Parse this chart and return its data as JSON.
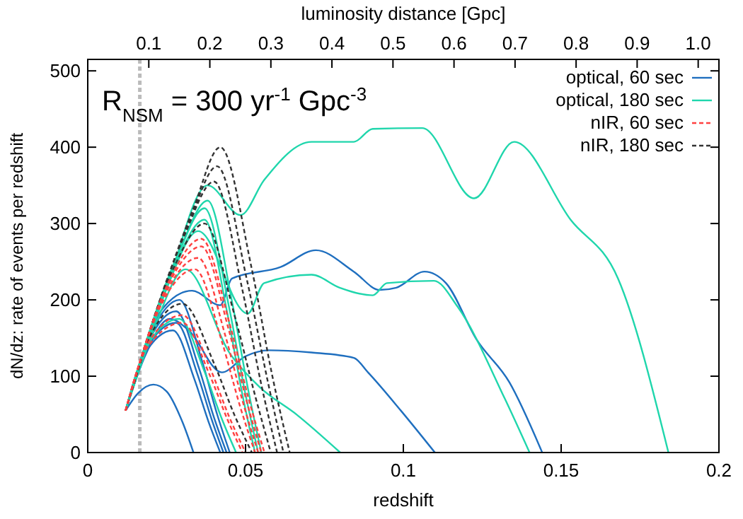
{
  "chart_data": {
    "type": "line",
    "xlabel": "redshift",
    "ylabel": "dN/dz: rate of events per redshift",
    "x2label": "luminosity distance [Gpc]",
    "xlim": [
      0,
      0.2
    ],
    "xticks": [
      0,
      0.05,
      0.1,
      0.15,
      0.2
    ],
    "ylim": [
      0,
      515
    ],
    "yticks": [
      0,
      100,
      200,
      300,
      400,
      500
    ],
    "x2lim": [
      0,
      1.034
    ],
    "x2ticks": [
      0.1,
      0.2,
      0.3,
      0.4,
      0.5,
      0.6,
      0.7,
      0.8,
      0.9,
      {
        "value": 1,
        "label": "1.0"
      }
    ],
    "annotations": [
      "R$_{NSM}$ = 300 yr$^{-1}$ Gpc$^{-3}$"
    ],
    "ref_lines": [
      {
        "axis": "x",
        "value": 0.0165,
        "color": "#bbbbbb",
        "line_style": "dashed"
      }
    ],
    "legend": "top right",
    "grid": false,
    "series": [
      {
        "name": "optical, 60 sec",
        "color": "#1f6fbf",
        "x": [
          0.012,
          0.024,
          0.033,
          0.042,
          0.0457,
          0.0611,
          0.0723,
          0.0843,
          0.0925,
          0.0978,
          0.1067,
          0.1135,
          0.1232,
          0.1336,
          0.144
        ],
        "values": [
          55,
          190,
          212,
          193,
          228,
          243,
          265,
          237,
          213,
          216,
          237,
          222,
          148,
          92,
          0
        ]
      },
      {
        "color": "#1f6fbf",
        "x": [
          0.012,
          0.018,
          0.026,
          0.032,
          0.0425,
          0.0499,
          0.0574,
          0.0709,
          0.0843,
          0.0888,
          0.0992,
          0.11
        ],
        "values": [
          55,
          125,
          175,
          160,
          105,
          126,
          134,
          131,
          124,
          105,
          55,
          0
        ]
      },
      {
        "color": "#1f6fbf",
        "x": [
          0.012,
          0.016,
          0.0208,
          0.025,
          0.03,
          0.0335
        ],
        "values": [
          55,
          78,
          89,
          80,
          40,
          0
        ]
      },
      {
        "color": "#1f6fbf",
        "x": [
          0.012,
          0.0205,
          0.029,
          0.0362,
          0.041,
          0.045
        ],
        "values": [
          55,
          160,
          200,
          120,
          50,
          0
        ]
      },
      {
        "color": "#1f6fbf",
        "x": [
          0.012,
          0.0196,
          0.028,
          0.0352,
          0.04,
          0.044
        ],
        "values": [
          55,
          148,
          185,
          111,
          46,
          0
        ]
      },
      {
        "color": "#1f6fbf",
        "x": [
          0.012,
          0.0186,
          0.028,
          0.0348,
          0.0393,
          0.043
        ],
        "values": [
          55,
          136,
          170,
          102,
          43,
          0
        ]
      },
      {
        "color": "#1f6fbf",
        "x": [
          0.012,
          0.0179,
          0.027,
          0.0338,
          0.0383,
          0.042
        ],
        "values": [
          55,
          128,
          160,
          96,
          40,
          0
        ]
      },
      {
        "name": "optical, 180 sec",
        "color": "#1fd6ac",
        "x": [
          0.012,
          0.025,
          0.038,
          0.0484,
          0.0559,
          0.0709,
          0.0843,
          0.0903,
          0.106,
          0.1224,
          0.1351,
          0.153,
          0.168,
          0.184
        ],
        "values": [
          55,
          215,
          350,
          311,
          357,
          407,
          407,
          424,
          425,
          333,
          407,
          305,
          228,
          0
        ]
      },
      {
        "color": "#1fd6ac",
        "x": [
          0.012,
          0.025,
          0.035,
          0.0507,
          0.0559,
          0.0709,
          0.0798,
          0.0903,
          0.0948,
          0.1097,
          0.1172,
          0.1321,
          0.14
        ],
        "values": [
          55,
          215,
          290,
          182,
          222,
          233,
          216,
          206,
          222,
          225,
          191,
          71,
          0
        ]
      },
      {
        "color": "#1fd6ac",
        "x": [
          0.012,
          0.02,
          0.031,
          0.045,
          0.0544,
          0.0664,
          0.08
        ],
        "values": [
          55,
          150,
          240,
          130,
          86,
          49,
          0
        ]
      },
      {
        "color": "#1fd6ac",
        "x": [
          0.012,
          0.029,
          0.038,
          0.0457,
          0.0508,
          0.055
        ],
        "values": [
          55,
          264,
          330,
          198,
          83,
          0
        ]
      },
      {
        "color": "#1fd6ac",
        "x": [
          0.012,
          0.0283,
          0.037,
          0.0447,
          0.0498,
          0.054
        ],
        "values": [
          55,
          256,
          320,
          192,
          80,
          0
        ]
      },
      {
        "color": "#1fd6ac",
        "x": [
          0.012,
          0.0274,
          0.037,
          0.0442,
          0.049,
          0.053
        ],
        "values": [
          55,
          244,
          305,
          183,
          76,
          0
        ]
      },
      {
        "color": "#1fd6ac",
        "x": [
          0.012,
          0.0189,
          0.029,
          0.0371,
          0.0425,
          0.047
        ],
        "values": [
          55,
          140,
          175,
          105,
          44,
          0
        ]
      },
      {
        "name": "nIR, 60 sec",
        "color": "#ff4040",
        "line_style": "dashed",
        "x": [
          0.012,
          0.0257,
          0.036,
          0.045,
          0.051,
          0.056
        ],
        "values": [
          55,
          224,
          280,
          168,
          70,
          0
        ]
      },
      {
        "color": "#ff4040",
        "line_style": "dashed",
        "x": [
          0.012,
          0.0251,
          0.036,
          0.0446,
          0.0503,
          0.055
        ],
        "values": [
          55,
          216,
          270,
          162,
          68,
          0
        ]
      },
      {
        "color": "#ff4040",
        "line_style": "dashed",
        "x": [
          0.012,
          0.0241,
          0.035,
          0.0436,
          0.0493,
          0.054
        ],
        "values": [
          55,
          204,
          255,
          153,
          64,
          0
        ]
      },
      {
        "color": "#ff4040",
        "line_style": "dashed",
        "x": [
          0.012,
          0.0231,
          0.034,
          0.0426,
          0.0483,
          0.053
        ],
        "values": [
          55,
          192,
          240,
          144,
          60,
          0
        ]
      },
      {
        "color": "#ff4040",
        "line_style": "dashed",
        "x": [
          0.012,
          0.0192,
          0.03,
          0.039,
          0.045,
          0.05
        ],
        "values": [
          55,
          144,
          180,
          108,
          45,
          0
        ]
      },
      {
        "color": "#ff4040",
        "line_style": "dashed",
        "x": [
          0.012,
          0.0186,
          0.03,
          0.0386,
          0.0443,
          0.049
        ],
        "values": [
          55,
          136,
          170,
          102,
          43,
          0
        ]
      },
      {
        "name": "nIR, 180 sec",
        "color": "#333333",
        "line_style": "dashed",
        "x": [
          0.012,
          0.0335,
          0.042,
          0.052,
          0.0585,
          0.064
        ],
        "values": [
          55,
          320,
          400,
          240,
          100,
          0
        ]
      },
      {
        "color": "#333333",
        "line_style": "dashed",
        "x": [
          0.012,
          0.032,
          0.041,
          0.0505,
          0.057,
          0.062
        ],
        "values": [
          55,
          300,
          375,
          225,
          94,
          0
        ]
      },
      {
        "color": "#333333",
        "line_style": "dashed",
        "x": [
          0.012,
          0.0306,
          0.04,
          0.049,
          0.055,
          0.06
        ],
        "values": [
          55,
          284,
          355,
          213,
          89,
          0
        ]
      },
      {
        "color": "#333333",
        "line_style": "dashed",
        "x": [
          0.012,
          0.027,
          0.037,
          0.0465,
          0.053,
          0.058
        ],
        "values": [
          55,
          240,
          300,
          180,
          75,
          0
        ]
      },
      {
        "color": "#333333",
        "line_style": "dashed",
        "x": [
          0.012,
          0.0202,
          0.03,
          0.04,
          0.0465,
          0.052
        ],
        "values": [
          55,
          156,
          195,
          117,
          49,
          0
        ]
      }
    ]
  }
}
